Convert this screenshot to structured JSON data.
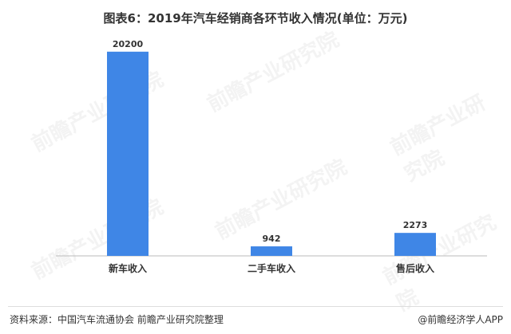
{
  "chart_data": {
    "type": "bar",
    "title": "图表6：2019年汽车经销商各环节收入情况(单位：万元)",
    "categories": [
      "新车收入",
      "二手车收入",
      "售后收入"
    ],
    "values": [
      20200,
      942,
      2273
    ],
    "ylim": [
      0,
      22000
    ],
    "grid": false,
    "bar_color": "#3f86e6"
  },
  "footer": {
    "source": "资料来源：中国汽车流通协会 前瞻产业研究院整理",
    "brand": "@前瞻经济学人APP"
  },
  "watermark": {
    "text": "前瞻产业研究院"
  }
}
